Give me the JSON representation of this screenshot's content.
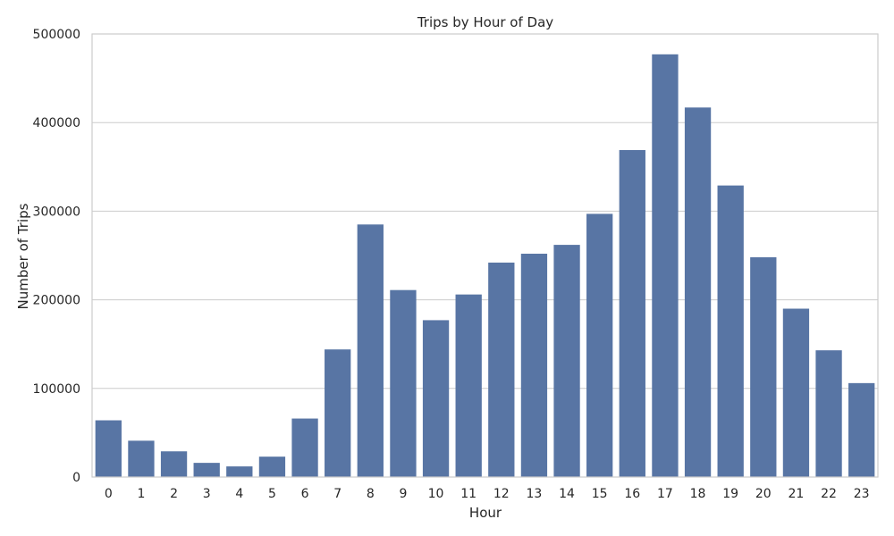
{
  "chart_data": {
    "type": "bar",
    "title": "Trips by Hour of Day",
    "xlabel": "Hour",
    "ylabel": "Number of Trips",
    "categories": [
      "0",
      "1",
      "2",
      "3",
      "4",
      "5",
      "6",
      "7",
      "8",
      "9",
      "10",
      "11",
      "12",
      "13",
      "14",
      "15",
      "16",
      "17",
      "18",
      "19",
      "20",
      "21",
      "22",
      "23"
    ],
    "values": [
      64000,
      41000,
      29000,
      16000,
      12000,
      23000,
      66000,
      144000,
      285000,
      211000,
      177000,
      206000,
      242000,
      252000,
      262000,
      297000,
      369000,
      477000,
      417000,
      329000,
      248000,
      190000,
      143000,
      106000
    ],
    "ylim": [
      0,
      500000
    ],
    "yticks": [
      0,
      100000,
      200000,
      300000,
      400000,
      500000
    ],
    "grid": true,
    "colors": {
      "bar": "#5875a4",
      "grid": "#cccccc",
      "frame": "#cccccc"
    }
  }
}
